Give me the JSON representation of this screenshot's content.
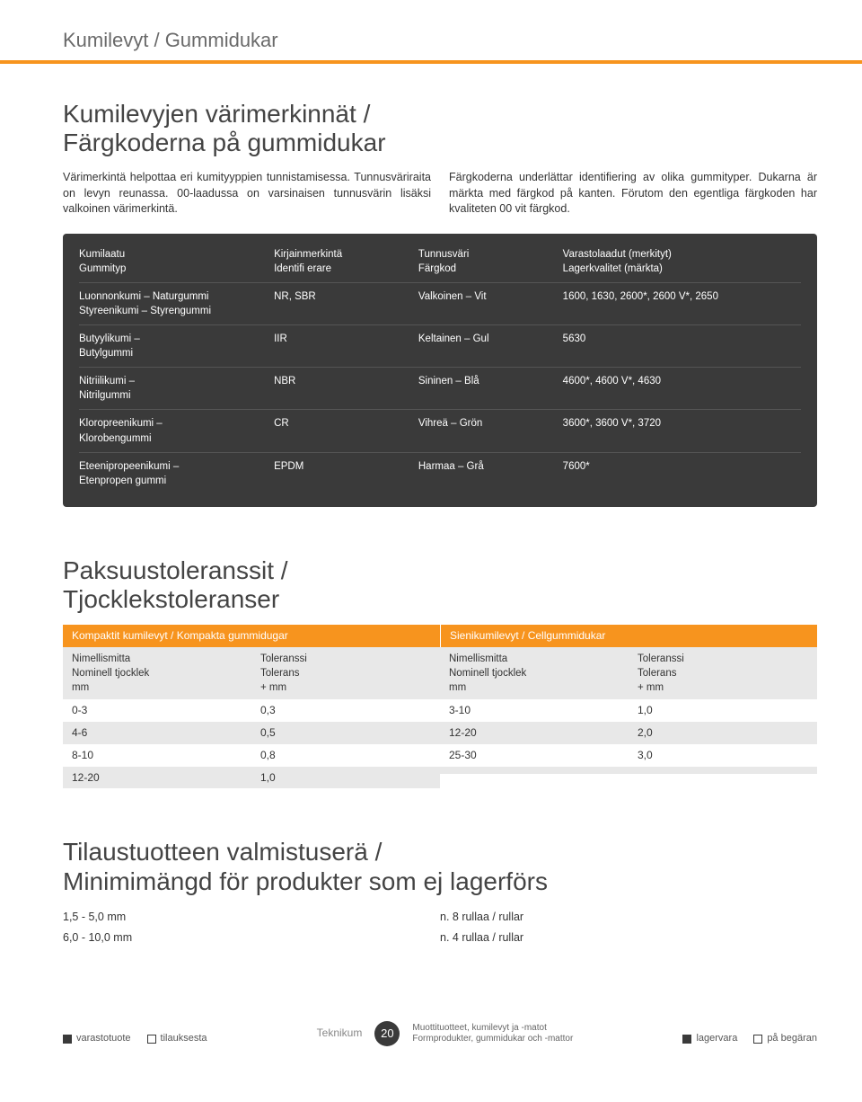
{
  "breadcrumb": "Kumilevyt / Gummidukar",
  "accent_color": "#f7941e",
  "section1": {
    "title": "Kumilevyjen värimerkinnät /\nFärgkoderna på gummidukar",
    "para_left": "Värimerkintä helpottaa eri kumityyppien tunnistamisessa. Tunnusväriraita on levyn reunassa. 00-laadussa on varsinaisen tunnusvärin lisäksi valkoinen värimerkintä.",
    "para_right": "Färgkoderna underlättar identifiering av olika gummityper. Dukarna är märkta med färgkod på kanten. Förutom den egentliga färgkoden har kvaliteten 00 vit färgkod."
  },
  "table1": {
    "headers": {
      "c1a": "Kumilaatu",
      "c1b": "Gummityp",
      "c2a": "Kirjainmerkintä",
      "c2b": "Identifi erare",
      "c3a": "Tunnusväri",
      "c3b": "Färgkod",
      "c4a": "Varastolaadut (merkityt)",
      "c4b": "Lagerkvalitet (märkta)"
    },
    "rows": [
      {
        "c1a": "Luonnonkumi – Naturgummi",
        "c1b": "Styreenikumi – Styrengummi",
        "c2": "NR, SBR",
        "c3": "Valkoinen – Vit",
        "c4": "1600, 1630, 2600*, 2600 V*, 2650"
      },
      {
        "c1a": "Butyylikumi –",
        "c1b": "Butylgummi",
        "c2": "IIR",
        "c3": "Keltainen – Gul",
        "c4": "5630"
      },
      {
        "c1a": "Nitriilikumi –",
        "c1b": "Nitrilgummi",
        "c2": "NBR",
        "c3": "Sininen – Blå",
        "c4": "4600*, 4600 V*, 4630"
      },
      {
        "c1a": "Kloropreenikumi –",
        "c1b": "Klorobengummi",
        "c2": "CR",
        "c3": "Vihreä – Grön",
        "c4": "3600*, 3600 V*, 3720"
      },
      {
        "c1a": "Eteenipropeenikumi –",
        "c1b": "Etenpropen gummi",
        "c2": "EPDM",
        "c3": "Harmaa – Grå",
        "c4": "7600*"
      }
    ]
  },
  "section2": {
    "title": "Paksuustoleranssit /\nTjocklekstoleranser",
    "left_head": "Kompaktit kumilevyt / Kompakta gummidugar",
    "right_head": "Sienikumilevyt / Cellgummidukar",
    "sub": {
      "c1a": "Nimellismitta",
      "c1b": "Nominell tjocklek",
      "c1c": "mm",
      "c2a": "Toleranssi",
      "c2b": "Tolerans",
      "c2c": "+ mm"
    },
    "left_rows": [
      {
        "a": "0-3",
        "b": "0,3"
      },
      {
        "a": "4-6",
        "b": "0,5"
      },
      {
        "a": "8-10",
        "b": "0,8"
      },
      {
        "a": "12-20",
        "b": "1,0"
      }
    ],
    "right_rows": [
      {
        "a": "3-10",
        "b": "1,0"
      },
      {
        "a": "12-20",
        "b": "2,0"
      },
      {
        "a": "25-30",
        "b": "3,0"
      },
      {
        "a": "",
        "b": ""
      }
    ]
  },
  "section3": {
    "title": "Tilaustuotteen valmistuserä /\nMinimimängd för produkter som ej lagerförs",
    "left": [
      "1,5 - 5,0 mm",
      "6,0 - 10,0 mm"
    ],
    "right": [
      "n. 8 rullaa / rullar",
      "n. 4 rullaa / rullar"
    ]
  },
  "footer": {
    "legend": [
      {
        "type": "filled",
        "label": "varastotuote"
      },
      {
        "type": "empty",
        "label": "tilauksesta"
      },
      {
        "type": "filled",
        "label": "lagervara"
      },
      {
        "type": "empty",
        "label": "på begäran"
      }
    ],
    "brand": "Teknikum",
    "page": "20",
    "slogan1": "Muottituotteet, kumilevyt ja -matot",
    "slogan2": "Formprodukter, gummidukar och -mattor"
  }
}
